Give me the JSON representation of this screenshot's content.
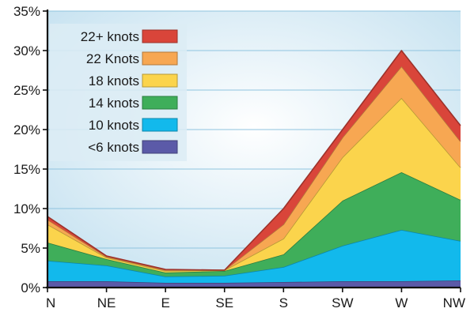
{
  "chart_data": {
    "type": "area",
    "stacked": true,
    "categories": [
      "N",
      "NE",
      "E",
      "SE",
      "S",
      "SW",
      "W",
      "NW"
    ],
    "ylim": [
      0,
      35
    ],
    "yticks": [
      0,
      5,
      10,
      15,
      20,
      25,
      30,
      35
    ],
    "ytick_labels": [
      "0%",
      "5%",
      "10%",
      "15%",
      "20%",
      "25%",
      "30%",
      "35%"
    ],
    "grid": "horizontal",
    "legend_position": "top-left",
    "series": [
      {
        "name": "<6 knots",
        "color": "#5b5aa8",
        "values": [
          0.8,
          0.8,
          0.6,
          0.6,
          0.7,
          0.8,
          0.8,
          0.9
        ]
      },
      {
        "name": "10 knots",
        "color": "#12b9ec",
        "values": [
          2.6,
          2.0,
          0.8,
          0.9,
          1.9,
          4.5,
          6.5,
          5.0
        ]
      },
      {
        "name": "14 knots",
        "color": "#3fae5a",
        "values": [
          2.3,
          0.8,
          0.5,
          0.6,
          1.6,
          5.7,
          7.3,
          5.2
        ]
      },
      {
        "name": "18 knots",
        "color": "#fbd44c",
        "values": [
          2.3,
          0.2,
          0.2,
          0.1,
          2.0,
          5.5,
          9.4,
          4.1
        ]
      },
      {
        "name": "22 Knots",
        "color": "#f7a752",
        "values": [
          0.6,
          0.1,
          0.1,
          0.0,
          1.8,
          2.5,
          4.0,
          3.3
        ]
      },
      {
        "name": "22+ knots",
        "color": "#d9453a",
        "values": [
          0.4,
          0.1,
          0.1,
          0.0,
          2.0,
          1.0,
          2.0,
          2.0
        ]
      }
    ]
  }
}
